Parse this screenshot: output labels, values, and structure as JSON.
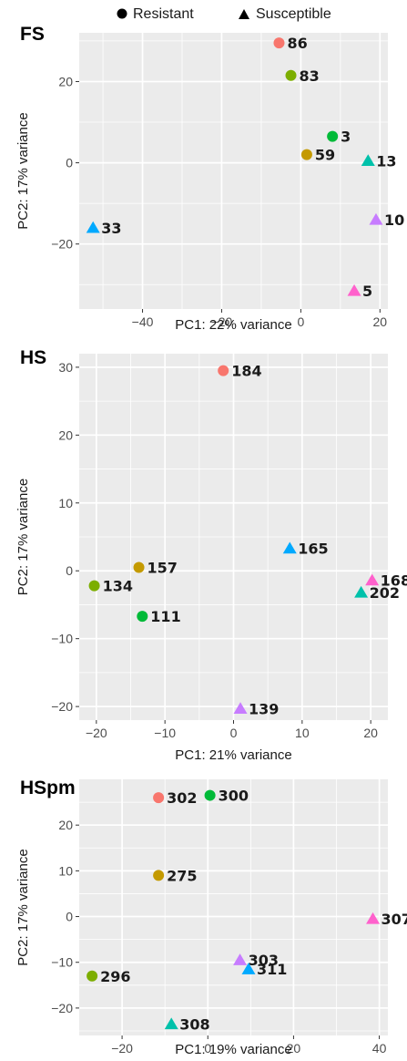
{
  "legend": {
    "items": [
      {
        "shape": "circle",
        "label": "Resistant"
      },
      {
        "shape": "triangle",
        "label": "Susceptible"
      }
    ]
  },
  "chart_data": [
    {
      "type": "scatter",
      "title": "FS",
      "xlabel": "PC1: 22% variance",
      "ylabel": "PC2: 17% variance",
      "xlim": [
        -56,
        22
      ],
      "ylim": [
        -36,
        32
      ],
      "xticks": [
        -40,
        -20,
        0,
        20
      ],
      "yticks": [
        -20,
        0,
        20
      ],
      "points": [
        {
          "label": "86",
          "x": -5.5,
          "y": 29.5,
          "shape": "circle",
          "color": "#F8766D"
        },
        {
          "label": "83",
          "x": -2.5,
          "y": 21.5,
          "shape": "circle",
          "color": "#7CAE00"
        },
        {
          "label": "3",
          "x": 8,
          "y": 6.5,
          "shape": "circle",
          "color": "#00BA38"
        },
        {
          "label": "59",
          "x": 1.5,
          "y": 2,
          "shape": "circle",
          "color": "#C49A00"
        },
        {
          "label": "13",
          "x": 17,
          "y": 0.5,
          "shape": "triangle",
          "color": "#00C1AA"
        },
        {
          "label": "33",
          "x": -52.5,
          "y": -16,
          "shape": "triangle",
          "color": "#00A9FF"
        },
        {
          "label": "10",
          "x": 19,
          "y": -14,
          "shape": "triangle",
          "color": "#C77CFF"
        },
        {
          "label": "5",
          "x": 13.5,
          "y": -31.5,
          "shape": "triangle",
          "color": "#FF61CC"
        }
      ]
    },
    {
      "type": "scatter",
      "title": "HS",
      "xlabel": "PC1: 21% variance",
      "ylabel": "PC2: 17% variance",
      "xlim": [
        -22.5,
        22.5
      ],
      "ylim": [
        -22,
        32
      ],
      "xticks": [
        -20,
        -10,
        0,
        10,
        20
      ],
      "yticks": [
        -20,
        -10,
        0,
        10,
        20,
        30
      ],
      "points": [
        {
          "label": "184",
          "x": -1.5,
          "y": 29.5,
          "shape": "circle",
          "color": "#F8766D"
        },
        {
          "label": "165",
          "x": 8.2,
          "y": 3.3,
          "shape": "triangle",
          "color": "#00A9FF"
        },
        {
          "label": "157",
          "x": -13.8,
          "y": 0.5,
          "shape": "circle",
          "color": "#C49A00"
        },
        {
          "label": "134",
          "x": -20.3,
          "y": -2.2,
          "shape": "circle",
          "color": "#7CAE00"
        },
        {
          "label": "168",
          "x": 20.2,
          "y": -1.4,
          "shape": "triangle",
          "color": "#FF61CC"
        },
        {
          "label": "202",
          "x": 18.6,
          "y": -3.2,
          "shape": "triangle",
          "color": "#00C1AA"
        },
        {
          "label": "111",
          "x": -13.3,
          "y": -6.7,
          "shape": "circle",
          "color": "#00BA38"
        },
        {
          "label": "139",
          "x": 1,
          "y": -20.3,
          "shape": "triangle",
          "color": "#C77CFF"
        }
      ]
    },
    {
      "type": "scatter",
      "title": "HSpm",
      "xlabel": "PC1: 19% variance",
      "ylabel": "PC2: 17% variance",
      "xlim": [
        -30,
        42
      ],
      "ylim": [
        -26,
        30
      ],
      "xticks": [
        -20,
        0,
        20,
        40
      ],
      "yticks": [
        -20,
        -10,
        0,
        10,
        20
      ],
      "points": [
        {
          "label": "302",
          "x": -11.5,
          "y": 26,
          "shape": "circle",
          "color": "#F8766D"
        },
        {
          "label": "300",
          "x": 0.5,
          "y": 26.5,
          "shape": "circle",
          "color": "#00BA38"
        },
        {
          "label": "275",
          "x": -11.5,
          "y": 9,
          "shape": "circle",
          "color": "#C49A00"
        },
        {
          "label": "307",
          "x": 38.5,
          "y": -0.5,
          "shape": "triangle",
          "color": "#FF61CC"
        },
        {
          "label": "303",
          "x": 7.5,
          "y": -9.5,
          "shape": "triangle",
          "color": "#C77CFF"
        },
        {
          "label": "311",
          "x": 9.5,
          "y": -11.5,
          "shape": "triangle",
          "color": "#00A9FF"
        },
        {
          "label": "296",
          "x": -27,
          "y": -13,
          "shape": "circle",
          "color": "#7CAE00"
        },
        {
          "label": "308",
          "x": -8.5,
          "y": -23.5,
          "shape": "triangle",
          "color": "#00C1AA"
        }
      ]
    }
  ]
}
